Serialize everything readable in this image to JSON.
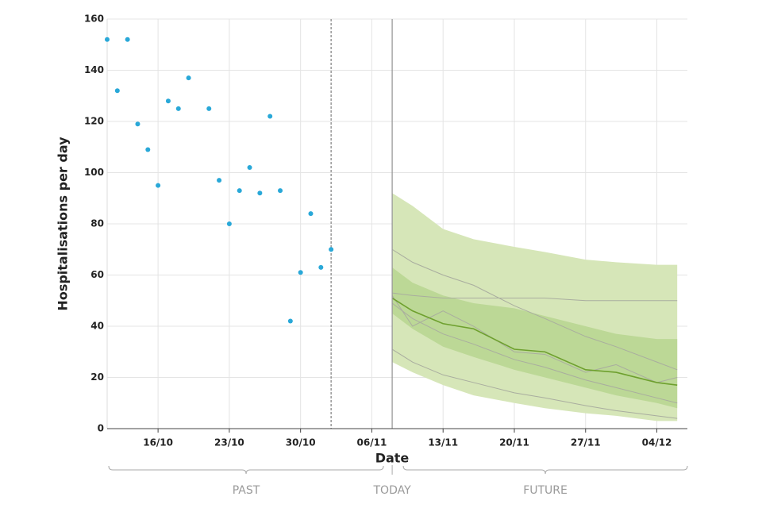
{
  "chart_data": {
    "type": "scatter",
    "y_label": "Hospitalisations per day",
    "x_label": "Date",
    "x": [
      "11/10",
      "12/10",
      "13/10",
      "14/10",
      "15/10",
      "16/10",
      "17/10",
      "18/10",
      "19/10",
      "21/10",
      "22/10",
      "23/10",
      "24/10",
      "25/10",
      "26/10",
      "27/10",
      "28/10",
      "29/10",
      "30/10",
      "31/10",
      "01/11",
      "02/11"
    ],
    "values": [
      152,
      132,
      152,
      119,
      109,
      95,
      128,
      125,
      137,
      125,
      97,
      80,
      93,
      102,
      92,
      122,
      93,
      42,
      61,
      84,
      63,
      70
    ],
    "color": "#29a8d8",
    "xlim": [
      "11/10",
      "07/12"
    ],
    "xticks": [
      "16/10",
      "23/10",
      "30/10",
      "06/11",
      "13/11",
      "20/11",
      "27/11",
      "04/12"
    ],
    "ylim": [
      0,
      160
    ],
    "yticks": [
      0,
      20,
      40,
      60,
      80,
      100,
      120,
      140,
      160
    ],
    "grid": true,
    "markers": [
      {
        "x": "02/11",
        "style": "dotted"
      },
      {
        "x": "08/11",
        "style": "solid"
      }
    ],
    "annotations": {
      "past": "PAST",
      "today": "TODAY",
      "future": "FUTURE"
    },
    "forecast": {
      "x": [
        "08/11",
        "10/11",
        "13/11",
        "16/11",
        "20/11",
        "23/11",
        "27/11",
        "30/11",
        "04/12",
        "06/12"
      ],
      "bands": [
        {
          "color": "#d6e6b8",
          "lower": [
            26,
            22,
            17,
            13,
            10,
            8,
            6,
            5,
            3,
            3
          ],
          "upper": [
            92,
            87,
            78,
            74,
            71,
            69,
            66,
            65,
            64,
            64
          ]
        },
        {
          "color": "#bcd896",
          "lower": [
            45,
            39,
            32,
            28,
            23,
            20,
            16,
            13,
            10,
            8
          ],
          "upper": [
            63,
            57,
            52,
            49,
            47,
            44,
            40,
            37,
            35,
            35
          ]
        }
      ],
      "lines": [
        {
          "color": "#a9ad9f",
          "values": [
            70,
            65,
            60,
            56,
            48,
            43,
            36,
            32,
            26,
            23
          ]
        },
        {
          "color": "#a9ad9f",
          "values": [
            53,
            52,
            51,
            51,
            51,
            51,
            50,
            50,
            50,
            50
          ]
        },
        {
          "color": "#a9ad9f",
          "values": [
            31,
            26,
            21,
            18,
            14,
            12,
            9,
            7,
            5,
            4
          ]
        },
        {
          "color": "#a9ad9f",
          "values": [
            49,
            43,
            37,
            33,
            27,
            24,
            19,
            16,
            12,
            10
          ]
        },
        {
          "color": "#a9ad9f",
          "values": [
            52,
            40,
            46,
            40,
            30,
            29,
            22,
            25,
            18,
            20
          ]
        },
        {
          "color": "#6ea02e",
          "values": [
            51,
            46,
            41,
            39,
            31,
            30,
            23,
            22,
            18,
            17
          ]
        }
      ]
    }
  }
}
